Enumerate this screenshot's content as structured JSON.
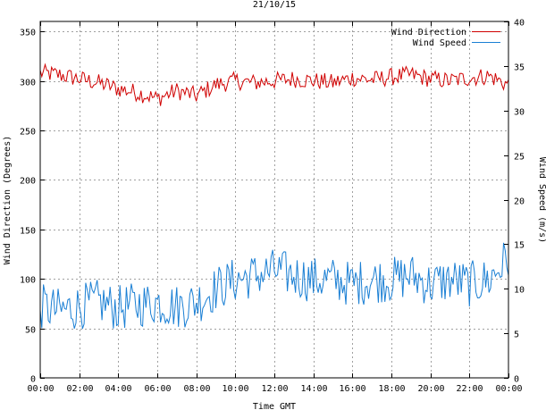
{
  "chart_data": {
    "type": "line",
    "title": "21/10/15",
    "xlabel": "Time GMT",
    "ylabel_left": "Wind Direction (Degrees)",
    "ylabel_right": "Wind Speed (m/s)",
    "x_tick_labels": [
      "00:00",
      "02:00",
      "04:00",
      "06:00",
      "08:00",
      "10:00",
      "12:00",
      "14:00",
      "16:00",
      "18:00",
      "20:00",
      "22:00",
      "00:00"
    ],
    "x_range_hours": [
      0,
      24
    ],
    "ylim_left": [
      0,
      360
    ],
    "yticks_left": [
      0,
      50,
      100,
      150,
      200,
      250,
      300,
      350
    ],
    "ylim_right": [
      0,
      40
    ],
    "yticks_right": [
      0,
      5,
      10,
      15,
      20,
      25,
      30,
      35,
      40
    ],
    "grid": true,
    "legend_position": "top-right",
    "series": [
      {
        "name": "Wind Direction",
        "axis": "left",
        "color": "#d00000",
        "x_hours": [
          0,
          1,
          2,
          3,
          4,
          5,
          6,
          7,
          8,
          9,
          10,
          11,
          12,
          13,
          14,
          15,
          16,
          17,
          18,
          19,
          20,
          21,
          22,
          23,
          24
        ],
        "values": [
          308,
          306,
          302,
          298,
          292,
          288,
          282,
          290,
          285,
          296,
          300,
          298,
          300,
          302,
          300,
          298,
          303,
          301,
          304,
          306,
          302,
          300,
          303,
          305,
          296
        ]
      },
      {
        "name": "Wind Speed",
        "axis": "right",
        "color": "#1a7fd4",
        "x_hours": [
          0,
          1,
          2,
          3,
          4,
          5,
          6,
          7,
          8,
          9,
          10,
          11,
          12,
          13,
          14,
          15,
          16,
          17,
          18,
          19,
          20,
          21,
          22,
          23,
          24
        ],
        "values": [
          8.0,
          7.5,
          8.0,
          8.5,
          7.8,
          8.2,
          8.5,
          8.0,
          8.5,
          10.0,
          11.0,
          11.5,
          12.0,
          11.5,
          11.0,
          11.0,
          10.5,
          11.0,
          11.0,
          11.5,
          10.5,
          11.0,
          10.5,
          11.0,
          13.5
        ]
      }
    ]
  }
}
